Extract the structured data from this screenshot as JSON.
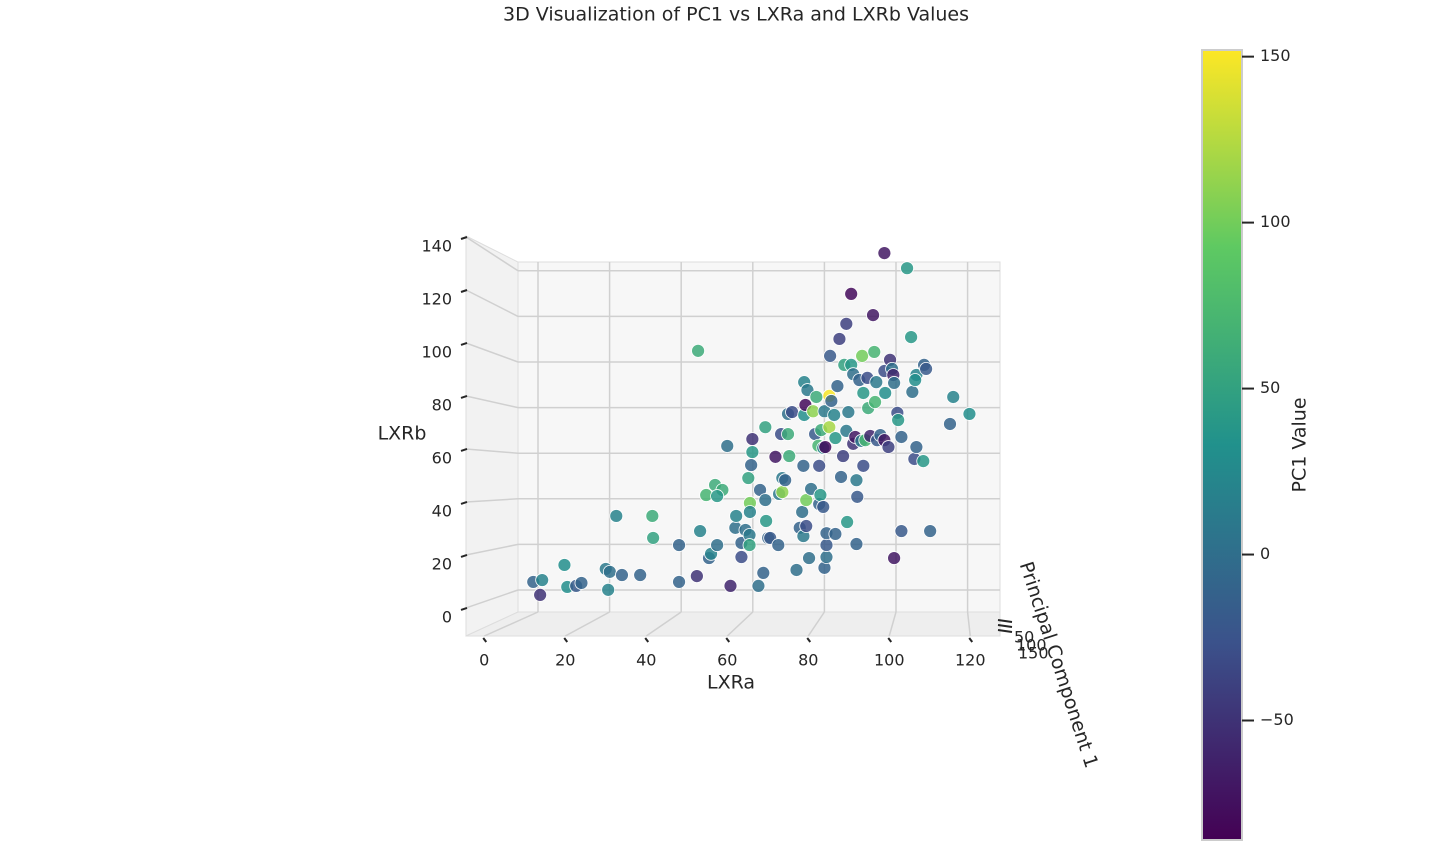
{
  "chart_data": {
    "type": "scatter",
    "title": "3D Visualization of PC1 vs LXRa and LXRb Values",
    "x_label": "LXRa",
    "y_label": "LXRb",
    "z_label": "Principal Component 1",
    "colorbar_label": "PC1 Value",
    "colormap": "viridis",
    "xlim": [
      -5,
      127
    ],
    "ylim": [
      -7,
      142
    ],
    "xticks": [
      0,
      20,
      40,
      60,
      80,
      100,
      120
    ],
    "yticks": [
      0,
      20,
      40,
      60,
      80,
      100,
      120,
      140
    ],
    "zticks": [
      50,
      100,
      150
    ],
    "clim": [
      -86,
      152
    ],
    "colorbar_ticks": [
      {
        "value": -50,
        "label": "−50"
      },
      0,
      50,
      100,
      150
    ],
    "x": [
      12.1,
      14.3,
      13.8,
      19.8,
      20.5,
      22.7,
      24,
      30,
      31,
      30.6,
      32.6,
      34,
      38.5,
      41.5,
      41.7,
      48.1,
      48.1,
      52.5,
      52.8,
      53.3,
      55.5,
      56,
      54.8,
      57,
      58.8,
      57.5,
      57.5,
      60.8,
      60,
      62,
      62.2,
      63.5,
      63.5,
      64.5,
      65.2,
      65.5,
      65.5,
      65.6,
      66.2,
      65.9,
      65.6,
      66.2,
      67.7,
      68.1,
      68.9,
      69.4,
      69.4,
      69.6,
      70.1,
      70.6,
      71.9,
      72.6,
      72.8,
      73.3,
      73.6,
      73.6,
      74.3,
      75,
      75,
      75.3,
      76,
      77.1,
      77.9,
      78.5,
      78.8,
      78.8,
      79,
      79.5,
      79,
      79.3,
      79.5,
      79.8,
      80.2,
      80.7,
      81.2,
      81.7,
      82,
      82.5,
      82.7,
      82.7,
      83,
      83.2,
      83.7,
      83.7,
      84,
      84,
      84.5,
      84.5,
      84.5,
      85.2,
      85.2,
      85.4,
      84.2,
      85.7,
      86.4,
      86.7,
      86.7,
      87.2,
      87.7,
      88.1,
      88.6,
      88.9,
      89.4,
      89.4,
      89.9,
      89.6,
      90.6,
      90.6,
      91.1,
      91.1,
      91.6,
      91.9,
      91.9,
      92.1,
      92.6,
      93.1,
      93.3,
      93.6,
      93.6,
      94.1,
      94.6,
      94.8,
      95.3,
      96,
      96.3,
      96.5,
      96.8,
      97,
      97.8,
      98.8,
      98.8,
      98.8,
      99,
      99.8,
      100.2,
      100.7,
      101,
      101.2,
      101.2,
      102,
      102.2,
      103,
      103,
      104.4,
      105.4,
      106.2,
      105.7,
      106.7,
      106.4,
      106.7,
      108.6,
      108.4,
      109.1,
      110.1,
      115,
      115.8,
      119.8
    ],
    "values": [
      13.6,
      14.3,
      8.7,
      20,
      11.7,
      12.1,
      13.2,
      18.5,
      17.4,
      10.6,
      38.5,
      16.2,
      16.2,
      38.5,
      30.2,
      27.5,
      13.6,
      15.8,
      100.8,
      32.8,
      22.6,
      24.2,
      46.4,
      50.2,
      48.3,
      46,
      27.5,
      12.1,
      64.9,
      34,
      38.5,
      23,
      28.3,
      33.2,
      52.8,
      31.3,
      27.5,
      43.4,
      67.5,
      57.7,
      40,
      62.6,
      12.1,
      48.3,
      17,
      72,
      44.5,
      36.6,
      30.2,
      30.2,
      60.8,
      27.5,
      46.8,
      69.4,
      47.5,
      52.8,
      52,
      69.4,
      77,
      61.1,
      77.7,
      18.1,
      34,
      40,
      30.9,
      57.4,
      89,
      34.7,
      76.6,
      80.4,
      44.5,
      86,
      22.6,
      48.7,
      78,
      69.4,
      83.4,
      65,
      57.4,
      43,
      46.4,
      70.9,
      41.9,
      64.2,
      78,
      18.9,
      23,
      27.5,
      32,
      83.8,
      72,
      98.9,
      64.5,
      81.9,
      76.6,
      67.9,
      31.7,
      87.5,
      105.3,
      53.2,
      61.1,
      95.5,
      70.6,
      111,
      77.7,
      36.2,
      122.3,
      95.5,
      92,
      65.7,
      68.3,
      27.9,
      52,
      45.7,
      89.8,
      66.8,
      98.9,
      84.9,
      57.4,
      67.1,
      90.6,
      79.2,
      68.7,
      114.3,
      100.4,
      81.5,
      89,
      67.1,
      69,
      137.7,
      67.1,
      93.2,
      84.9,
      64.5,
      97.4,
      94,
      91.7,
      22.6,
      88.7,
      77.4,
      74.7,
      32.8,
      68.3,
      132,
      106,
      60,
      85.3,
      91.7,
      89.8,
      64.5,
      95.5,
      59.2,
      94,
      32.8,
      73.2,
      83.4,
      77
    ],
    "color_values": [
      -10,
      20,
      -50,
      30,
      30,
      -20,
      -10,
      10,
      0,
      20,
      20,
      -10,
      -10,
      60,
      50,
      -10,
      -10,
      -50,
      60,
      20,
      -10,
      20,
      70,
      60,
      60,
      40,
      0,
      -60,
      0,
      0,
      20,
      -30,
      -10,
      0,
      50,
      10,
      50,
      100,
      -50,
      -10,
      20,
      40,
      0,
      -10,
      -10,
      50,
      0,
      40,
      -10,
      -20,
      -70,
      -10,
      10,
      -30,
      110,
      10,
      -10,
      60,
      0,
      60,
      -30,
      0,
      -10,
      0,
      10,
      -10,
      20,
      -30,
      30,
      -80,
      100,
      10,
      0,
      0,
      110,
      -20,
      60,
      70,
      -30,
      -10,
      40,
      60,
      -20,
      20,
      10,
      -10,
      0,
      -20,
      -10,
      150,
      120,
      -20,
      -80,
      -10,
      20,
      40,
      -10,
      -10,
      -40,
      -10,
      -40,
      50,
      10,
      -40,
      10,
      40,
      -80,
      40,
      0,
      -50,
      -70,
      -10,
      10,
      -20,
      -10,
      10,
      100,
      40,
      -30,
      70,
      -30,
      60,
      -60,
      -70,
      70,
      70,
      10,
      -20,
      -10,
      -70,
      -70,
      -30,
      30,
      -40,
      -50,
      0,
      -60,
      -70,
      0,
      -30,
      40,
      -20,
      -10,
      40,
      40,
      -30,
      0,
      20,
      30,
      -10,
      -10,
      40,
      -20,
      -10,
      -10,
      20,
      30
    ]
  }
}
